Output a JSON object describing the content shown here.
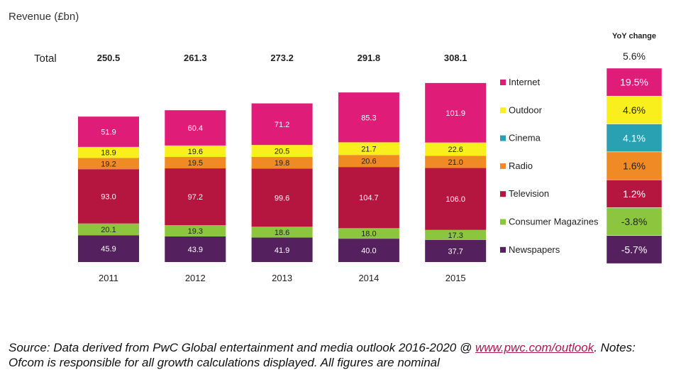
{
  "chart_data": {
    "type": "bar",
    "stacked": true,
    "ylabel": "Revenue (£bn)",
    "total_label": "Total",
    "categories": [
      "2011",
      "2012",
      "2013",
      "2014",
      "2015"
    ],
    "totals": [
      "250.5",
      "261.3",
      "273.2",
      "291.8",
      "308.1"
    ],
    "series": [
      {
        "name": "Newspapers",
        "color": "#54205e",
        "values": [
          45.9,
          43.9,
          41.9,
          40.0,
          37.7
        ],
        "labels": [
          "45.9",
          "43.9",
          "41.9",
          "40.0",
          "37.7"
        ],
        "light_text": true
      },
      {
        "name": "Consumer Magazines",
        "color": "#8cc63f",
        "values": [
          20.1,
          19.3,
          18.6,
          18.0,
          17.3
        ],
        "labels": [
          "20.1",
          "19.3",
          "18.6",
          "18.0",
          "17.3"
        ],
        "light_text": false
      },
      {
        "name": "Television",
        "color": "#b5163f",
        "values": [
          93.0,
          97.2,
          99.6,
          104.7,
          106.0
        ],
        "labels": [
          "93.0",
          "97.2",
          "99.6",
          "104.7",
          "106.0"
        ],
        "light_text": true
      },
      {
        "name": "Radio",
        "color": "#ef8a24",
        "values": [
          19.2,
          19.5,
          19.8,
          20.6,
          21.0
        ],
        "labels": [
          "19.2",
          "19.5",
          "19.8",
          "20.6",
          "21.0"
        ],
        "light_text": false
      },
      {
        "name": "Cinema",
        "color": "#2aa1b3",
        "values": [
          0,
          0,
          0,
          0,
          0
        ],
        "labels": [],
        "light_text": false
      },
      {
        "name": "Outdoor",
        "color": "#f8ef1c",
        "values": [
          18.9,
          19.6,
          20.5,
          21.7,
          22.6
        ],
        "labels": [
          "18.9",
          "19.6",
          "20.5",
          "21.7",
          "22.6"
        ],
        "light_text": false
      },
      {
        "name": "Internet",
        "color": "#e01c79",
        "values": [
          51.9,
          60.4,
          71.2,
          85.3,
          101.9
        ],
        "labels": [
          "51.9",
          "60.4",
          "71.2",
          "85.3",
          "101.9"
        ],
        "light_text": true
      }
    ],
    "legend_order": [
      "Internet",
      "Outdoor",
      "Cinema",
      "Radio",
      "Television",
      "Consumer Magazines",
      "Newspapers"
    ],
    "yoy": {
      "title": "YoY change",
      "total": "5.6%",
      "values": {
        "Internet": "19.5%",
        "Outdoor": "4.6%",
        "Cinema": "4.1%",
        "Radio": "1.6%",
        "Television": "1.2%",
        "Consumer Magazines": "-3.8%",
        "Newspapers": "-5.7%"
      }
    },
    "ylim": [
      0,
      310
    ]
  },
  "footnote": {
    "prefix": "Source: Data derived from PwC Global entertainment and media outlook 2016-2020 @ ",
    "link": "www.pwc.com/outlook",
    "suffix": ". Notes: Ofcom is responsible for all growth calculations displayed. All figures are nominal"
  }
}
